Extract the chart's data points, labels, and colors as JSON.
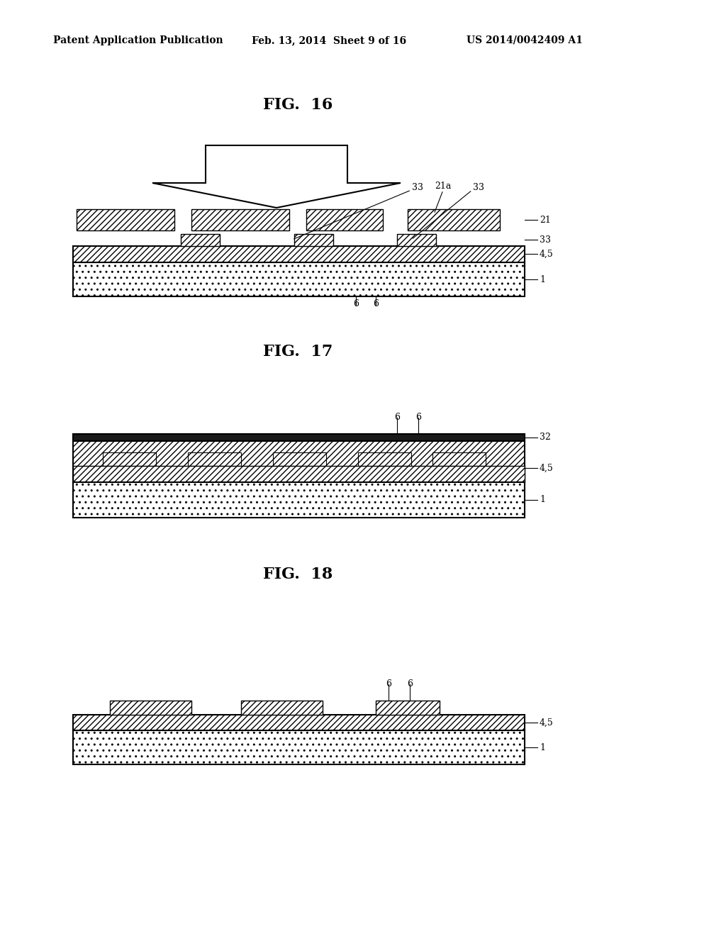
{
  "bg_color": "#ffffff",
  "header_left": "Patent Application Publication",
  "header_mid": "Feb. 13, 2014  Sheet 9 of 16",
  "header_right": "US 2014/0042409 A1",
  "fig16_title": "FIG.  16",
  "fig17_title": "FIG.  17",
  "fig18_title": "FIG.  18",
  "line_color": "#000000"
}
